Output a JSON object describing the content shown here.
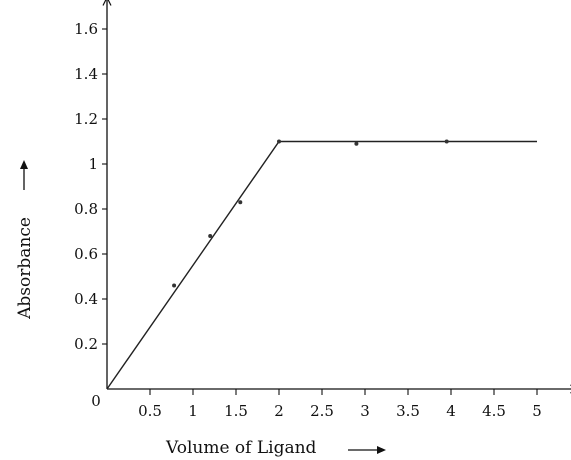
{
  "chart_data": {
    "type": "line",
    "xlabel": "Volume of Ligand",
    "ylabel": "Absorbance",
    "origin_label": "0",
    "x_ticks": [
      0.5,
      1,
      1.5,
      2,
      2.5,
      3,
      3.5,
      4,
      4.5,
      5
    ],
    "x_tick_labels": [
      "0.5",
      "1",
      "1.5",
      "2",
      "2.5",
      "3",
      "3.5",
      "4",
      "4.5",
      "5"
    ],
    "y_ticks": [
      0.2,
      0.4,
      0.6,
      0.8,
      1,
      1.2,
      1.4,
      1.6
    ],
    "y_tick_labels": [
      "0.2",
      "0.4",
      "0.6",
      "0.8",
      "1",
      "1.2",
      "1.4",
      "1.6"
    ],
    "xlim": [
      0,
      5.4
    ],
    "ylim": [
      0,
      1.7
    ],
    "grid": false,
    "series": [
      {
        "line": {
          "x": [
            0,
            2,
            5
          ],
          "y": [
            0,
            1.1,
            1.1
          ]
        },
        "points": {
          "x": [
            0.78,
            1.2,
            1.55,
            2,
            2.9,
            3.95
          ],
          "y": [
            0.46,
            0.68,
            0.83,
            1.1,
            1.09,
            1.1
          ]
        }
      }
    ],
    "colors": {
      "line": "#222222",
      "point": "#333333",
      "axis": "#111111"
    }
  }
}
